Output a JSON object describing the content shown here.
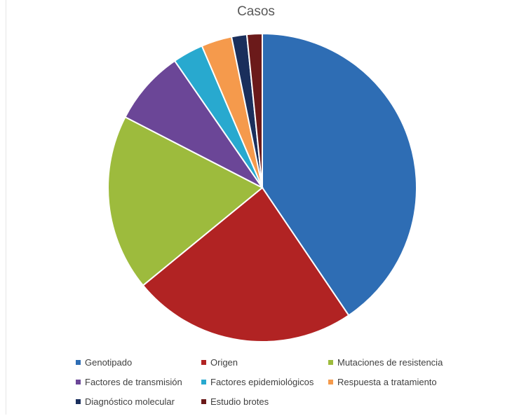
{
  "chart_data": {
    "type": "pie",
    "title": "Casos",
    "categories": [
      "Genotipado",
      "Origen",
      "Mutaciones de resistencia",
      "Factores de transmisión",
      "Factores epidemiológicos",
      "Respuesta a tratamiento",
      "Diagnóstico molecular",
      "Estudio brotes"
    ],
    "values": [
      40.5,
      23.5,
      18.5,
      7.8,
      3.2,
      3.2,
      1.6,
      1.6
    ],
    "colors": [
      "#2E6DB4",
      "#B12323",
      "#9DBB3D",
      "#6B4697",
      "#28A9CF",
      "#F59A4C",
      "#1A2F5C",
      "#6B1A1A"
    ],
    "legend_position": "bottom"
  }
}
